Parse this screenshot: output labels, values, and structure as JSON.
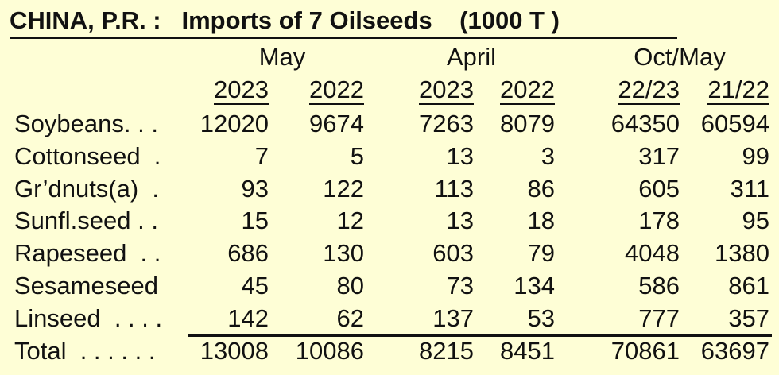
{
  "chart_data": {
    "type": "table",
    "title": "CHINA, P.R. :   Imports of 7 Oilseeds    (1000 T )",
    "column_groups": [
      {
        "label": "May",
        "years": [
          "2023",
          "2022"
        ]
      },
      {
        "label": "April",
        "years": [
          "2023",
          "2022"
        ]
      },
      {
        "label": "Oct/May",
        "years": [
          "22/23",
          "21/22"
        ]
      }
    ],
    "rows": [
      {
        "label": "Soybeans. . .",
        "values": [
          12020,
          9674,
          7263,
          8079,
          64350,
          60594
        ]
      },
      {
        "label": "Cottonseed  .",
        "values": [
          7,
          5,
          13,
          3,
          317,
          99
        ]
      },
      {
        "label": "Gr’dnuts(a)  .",
        "values": [
          93,
          122,
          113,
          86,
          605,
          311
        ]
      },
      {
        "label": "Sunfl.seed . .",
        "values": [
          15,
          12,
          13,
          18,
          178,
          95
        ]
      },
      {
        "label": "Rapeseed  . .",
        "values": [
          686,
          130,
          603,
          79,
          4048,
          1380
        ]
      },
      {
        "label": "Sesameseed",
        "values": [
          45,
          80,
          73,
          134,
          586,
          861
        ]
      },
      {
        "label": "Linseed  . . . .",
        "values": [
          142,
          62,
          137,
          53,
          777,
          357
        ]
      }
    ],
    "total": {
      "label": "Total  . . . . . .",
      "values": [
        13008,
        10086,
        8215,
        8451,
        70861,
        63697
      ]
    }
  }
}
